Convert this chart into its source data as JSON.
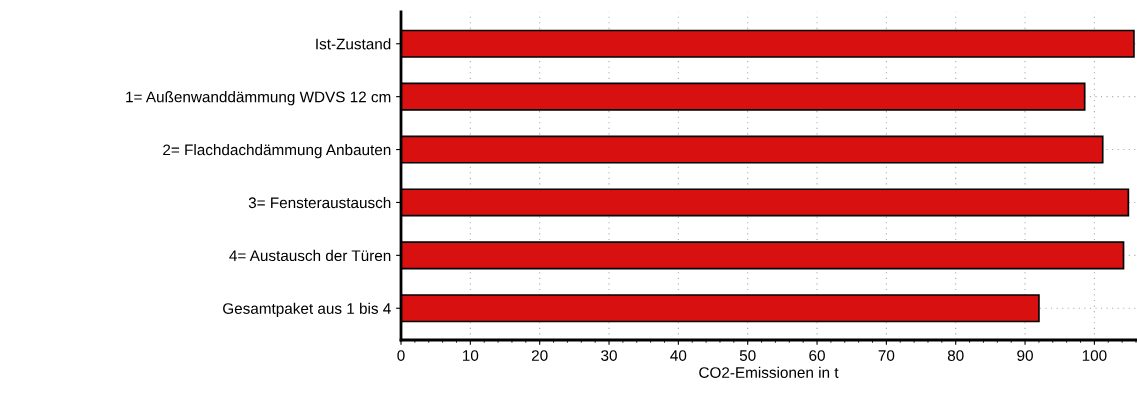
{
  "chart_data": {
    "type": "bar",
    "orientation": "horizontal",
    "xlabel": "CO2-Emissionen in t",
    "categories": [
      "Ist-Zustand",
      "1= Außenwanddämmung WDVS 12 cm",
      "2= Flachdachdämmung Anbauten",
      "3= Fensteraustausch",
      "4= Austausch der Türen",
      "Gesamtpaket aus 1 bis 4"
    ],
    "values": [
      105.7,
      98.6,
      101.2,
      104.9,
      104.2,
      92.0
    ],
    "color": "#d81010",
    "xlim": [
      0,
      106
    ],
    "xticks": [
      0,
      10,
      20,
      30,
      40,
      50,
      60,
      70,
      80,
      90,
      100
    ],
    "grid": true
  }
}
